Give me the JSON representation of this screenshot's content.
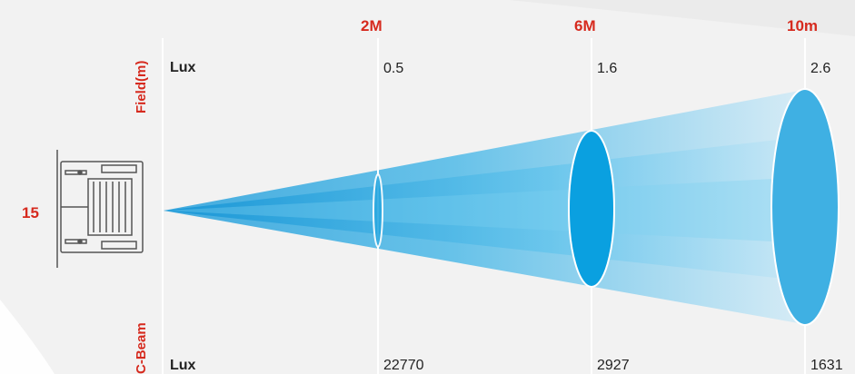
{
  "angle_label": "15",
  "field_axis_label": "Field(m)",
  "beam_axis_label": "C-Beam",
  "field_row_label": "Lux",
  "beam_row_label": "Lux",
  "distances": [
    {
      "label": "2M",
      "field": "0.5",
      "lux": "22770"
    },
    {
      "label": "6M",
      "field": "1.6",
      "lux": "2927"
    },
    {
      "label": "10m",
      "field": "2.6",
      "lux": "1631"
    }
  ],
  "colors": {
    "accent": "#d62a1e",
    "beam": "#1aa0de",
    "ellipse": "#29a8e0",
    "background": "#f2f2f2"
  },
  "icons": [
    "fixture-icon"
  ]
}
